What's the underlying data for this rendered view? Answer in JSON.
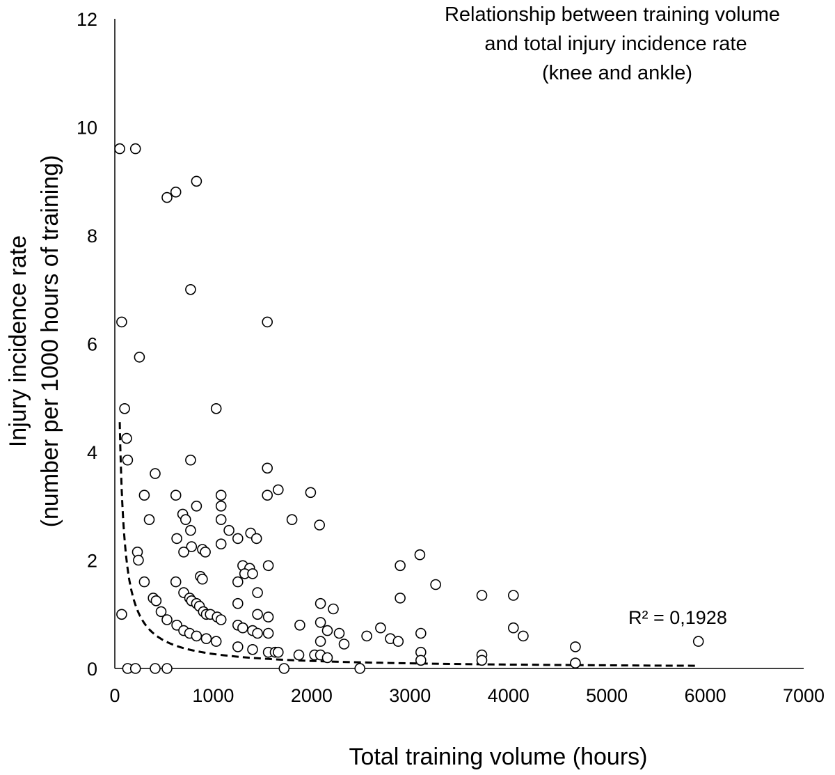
{
  "chart_data": {
    "type": "scatter",
    "title": [
      "Relationship between training volume",
      "and total injury incidence rate",
      "(knee and ankle)"
    ],
    "xlabel": "Total training volume (hours)",
    "ylabel": [
      "Injury incidence rate",
      "(number per 1000 hours of training)"
    ],
    "xlim": [
      0,
      7000
    ],
    "ylim": [
      0,
      12
    ],
    "xticks": [
      0,
      1000,
      2000,
      3000,
      4000,
      5000,
      6000,
      7000
    ],
    "yticks": [
      0,
      2,
      4,
      6,
      8,
      10,
      12
    ],
    "grid": false,
    "trendline": {
      "type": "power",
      "style": "dashed",
      "x_range": [
        50,
        5900
      ],
      "r_squared_label": "R² = 0,1928"
    },
    "points": [
      [
        50,
        9.6
      ],
      [
        210,
        9.6
      ],
      [
        530,
        8.7
      ],
      [
        620,
        8.8
      ],
      [
        830,
        9.0
      ],
      [
        770,
        7.0
      ],
      [
        70,
        6.4
      ],
      [
        1550,
        6.4
      ],
      [
        250,
        5.75
      ],
      [
        100,
        4.8
      ],
      [
        1030,
        4.8
      ],
      [
        120,
        4.25
      ],
      [
        130,
        3.85
      ],
      [
        770,
        3.85
      ],
      [
        410,
        3.6
      ],
      [
        1550,
        3.7
      ],
      [
        300,
        3.2
      ],
      [
        620,
        3.2
      ],
      [
        1080,
        3.2
      ],
      [
        1550,
        3.2
      ],
      [
        1660,
        3.3
      ],
      [
        1990,
        3.25
      ],
      [
        830,
        3.0
      ],
      [
        1080,
        3.0
      ],
      [
        350,
        2.75
      ],
      [
        690,
        2.85
      ],
      [
        720,
        2.75
      ],
      [
        1080,
        2.75
      ],
      [
        1800,
        2.75
      ],
      [
        2080,
        2.65
      ],
      [
        630,
        2.4
      ],
      [
        770,
        2.55
      ],
      [
        1160,
        2.55
      ],
      [
        1250,
        2.4
      ],
      [
        1380,
        2.5
      ],
      [
        1440,
        2.4
      ],
      [
        780,
        2.25
      ],
      [
        1080,
        2.3
      ],
      [
        230,
        2.15
      ],
      [
        700,
        2.15
      ],
      [
        890,
        2.2
      ],
      [
        920,
        2.15
      ],
      [
        240,
        2.0
      ],
      [
        1300,
        1.9
      ],
      [
        1370,
        1.85
      ],
      [
        1560,
        1.9
      ],
      [
        870,
        1.7
      ],
      [
        890,
        1.65
      ],
      [
        1320,
        1.75
      ],
      [
        1400,
        1.75
      ],
      [
        300,
        1.6
      ],
      [
        620,
        1.6
      ],
      [
        1250,
        1.6
      ],
      [
        1450,
        1.4
      ],
      [
        390,
        1.3
      ],
      [
        420,
        1.25
      ],
      [
        700,
        1.4
      ],
      [
        760,
        1.3
      ],
      [
        780,
        1.25
      ],
      [
        830,
        1.2
      ],
      [
        860,
        1.15
      ],
      [
        1250,
        1.2
      ],
      [
        470,
        1.05
      ],
      [
        900,
        1.05
      ],
      [
        930,
        1.0
      ],
      [
        970,
        1.0
      ],
      [
        1040,
        0.95
      ],
      [
        1080,
        0.9
      ],
      [
        70,
        1.0
      ],
      [
        530,
        0.9
      ],
      [
        630,
        0.8
      ],
      [
        1450,
        1.0
      ],
      [
        1560,
        0.95
      ],
      [
        700,
        0.7
      ],
      [
        760,
        0.65
      ],
      [
        830,
        0.6
      ],
      [
        930,
        0.55
      ],
      [
        1030,
        0.5
      ],
      [
        1250,
        0.8
      ],
      [
        1300,
        0.75
      ],
      [
        1400,
        0.7
      ],
      [
        1450,
        0.65
      ],
      [
        1560,
        0.65
      ],
      [
        1250,
        0.4
      ],
      [
        1400,
        0.35
      ],
      [
        1560,
        0.3
      ],
      [
        1630,
        0.3
      ],
      [
        1660,
        0.3
      ],
      [
        130,
        0.0
      ],
      [
        210,
        0.0
      ],
      [
        410,
        0.0
      ],
      [
        530,
        0.0
      ],
      [
        1720,
        0.0
      ],
      [
        2490,
        0.0
      ],
      [
        1880,
        0.8
      ],
      [
        2090,
        1.2
      ],
      [
        2090,
        0.85
      ],
      [
        2220,
        1.1
      ],
      [
        2090,
        0.5
      ],
      [
        2160,
        0.7
      ],
      [
        2280,
        0.65
      ],
      [
        2330,
        0.45
      ],
      [
        1870,
        0.25
      ],
      [
        2030,
        0.25
      ],
      [
        2090,
        0.25
      ],
      [
        2160,
        0.2
      ],
      [
        2560,
        0.6
      ],
      [
        2700,
        0.75
      ],
      [
        2800,
        0.55
      ],
      [
        2880,
        0.5
      ],
      [
        2900,
        1.3
      ],
      [
        2900,
        1.9
      ],
      [
        3100,
        2.1
      ],
      [
        3110,
        0.65
      ],
      [
        3110,
        0.3
      ],
      [
        3110,
        0.15
      ],
      [
        3260,
        1.55
      ],
      [
        3730,
        1.35
      ],
      [
        3730,
        0.25
      ],
      [
        3730,
        0.15
      ],
      [
        4050,
        1.35
      ],
      [
        4050,
        0.75
      ],
      [
        4150,
        0.6
      ],
      [
        4680,
        0.4
      ],
      [
        4680,
        0.1
      ],
      [
        5930,
        0.5
      ]
    ]
  }
}
